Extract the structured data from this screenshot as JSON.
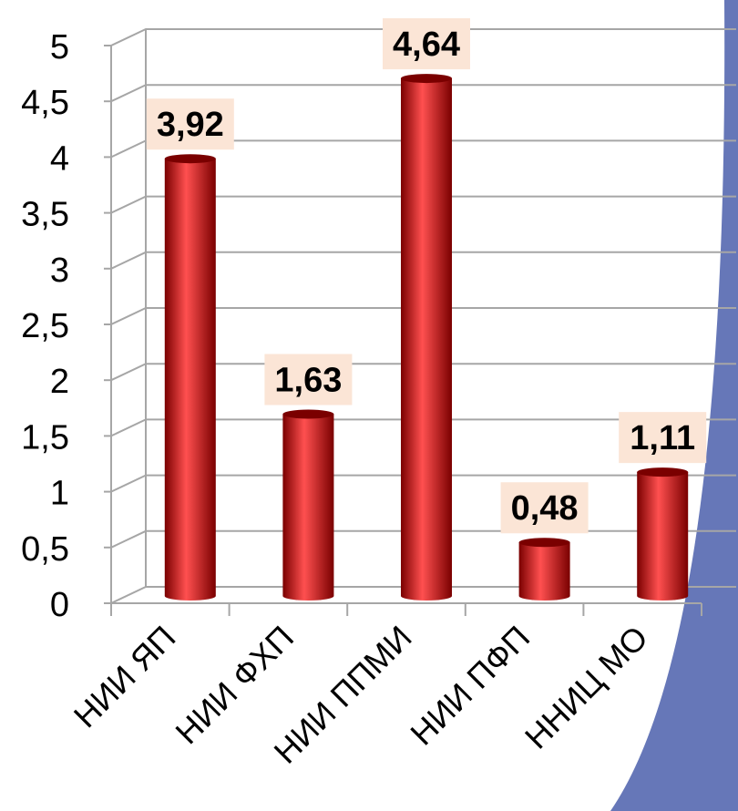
{
  "colors": {
    "bar": "#cc0000",
    "bar_dark": "#7a0000",
    "bar_light": "#ff5050",
    "label_bg": "#fbe5d6",
    "grid": "#a6a6a6",
    "decor": "#6677b8"
  },
  "chart_data": {
    "type": "bar",
    "style": "3d-cylinder",
    "categories": [
      "НИИ ЯП",
      "НИИ ФХП",
      "НИИ ППМИ",
      "НИИ ПФП",
      "ННИЦ МО"
    ],
    "values": [
      3.92,
      1.63,
      4.64,
      0.48,
      1.11
    ],
    "data_labels": [
      "3,92",
      "1,63",
      "4,64",
      "0,48",
      "1,11"
    ],
    "ylim": [
      0,
      5
    ],
    "y_ticks": [
      0,
      0.5,
      1,
      1.5,
      2,
      2.5,
      3,
      3.5,
      4,
      4.5,
      5
    ],
    "y_tick_labels": [
      "0",
      "0,5",
      "1",
      "1,5",
      "2",
      "2,5",
      "3",
      "3,5",
      "4",
      "4,5",
      "5"
    ],
    "grid": true,
    "legend": "none",
    "title": "",
    "xlabel": "",
    "ylabel": ""
  }
}
